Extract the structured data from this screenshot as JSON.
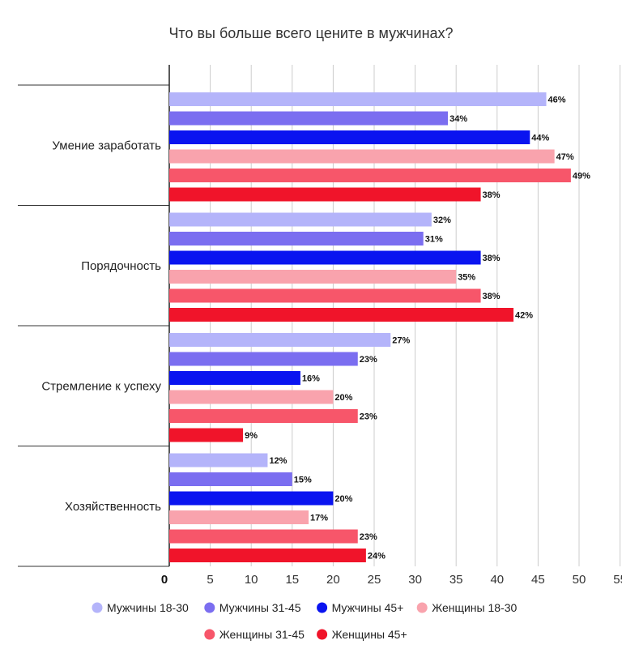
{
  "chart_data": {
    "type": "bar",
    "orientation": "horizontal",
    "title": "Что вы больше всего цените в мужчинах?",
    "categories": [
      "Умение заработать",
      "Порядочность",
      "Стремление к успеху",
      "Хозяйственность"
    ],
    "xlim": [
      0,
      55
    ],
    "xticks": [
      0,
      5,
      10,
      15,
      20,
      25,
      30,
      35,
      40,
      45,
      50,
      55
    ],
    "value_suffix": "%",
    "grid": true,
    "legend_position": "bottom",
    "series": [
      {
        "name": "Мужчины 18-30",
        "color": "#b4b4fa",
        "values": [
          46,
          32,
          27,
          12
        ]
      },
      {
        "name": "Мужчины 31-45",
        "color": "#7b6ef0",
        "values": [
          34,
          31,
          23,
          15
        ]
      },
      {
        "name": "Мужчины 45+",
        "color": "#0a14f0",
        "values": [
          44,
          38,
          16,
          20
        ]
      },
      {
        "name": "Женщины 18-30",
        "color": "#f9a3ad",
        "values": [
          47,
          35,
          20,
          17
        ]
      },
      {
        "name": "Женщины 31-45",
        "color": "#f7566a",
        "values": [
          49,
          38,
          23,
          23
        ]
      },
      {
        "name": "Женщины 45+",
        "color": "#f0142a",
        "values": [
          38,
          42,
          9,
          24
        ]
      }
    ]
  }
}
